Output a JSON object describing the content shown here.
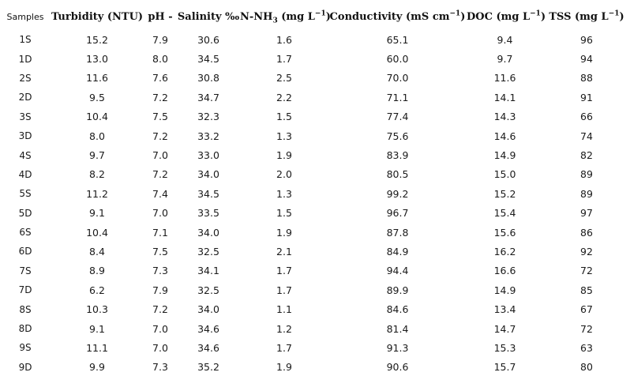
{
  "table": {
    "headers": {
      "samples": "Samples",
      "turbidity": "Turbidity (NTU)",
      "ph": "pH -",
      "salinity": "Salinity ‰",
      "nh3_prefix": "N-NH",
      "nh3_sub": "3",
      "nh3_unit": " (mg L",
      "nh3_sup": "−1",
      "nh3_close": ")",
      "cond_main": "Conductivity (mS cm",
      "cond_sup": "−1",
      "cond_close": ")",
      "doc_main": "DOC (mg L",
      "doc_sup": "−1",
      "doc_close": ")",
      "tss_main": "TSS (mg L",
      "tss_sup": "−1",
      "tss_close": ")"
    },
    "rows": [
      [
        "1S",
        "15.2",
        "7.9",
        "30.6",
        "1.6",
        "65.1",
        "9.4",
        "96"
      ],
      [
        "1D",
        "13.0",
        "8.0",
        "34.5",
        "1.7",
        "60.0",
        "9.7",
        "94"
      ],
      [
        "2S",
        "11.6",
        "7.6",
        "30.8",
        "2.5",
        "70.0",
        "11.6",
        "88"
      ],
      [
        "2D",
        "9.5",
        "7.2",
        "34.7",
        "2.2",
        "71.1",
        "14.1",
        "91"
      ],
      [
        "3S",
        "10.4",
        "7.5",
        "32.3",
        "1.5",
        "77.4",
        "14.3",
        "66"
      ],
      [
        "3D",
        "8.0",
        "7.2",
        "33.2",
        "1.3",
        "75.6",
        "14.6",
        "74"
      ],
      [
        "4S",
        "9.7",
        "7.0",
        "33.0",
        "1.9",
        "83.9",
        "14.9",
        "82"
      ],
      [
        "4D",
        "8.2",
        "7.2",
        "34.0",
        "2.0",
        "80.5",
        "15.0",
        "89"
      ],
      [
        "5S",
        "11.2",
        "7.4",
        "34.5",
        "1.3",
        "99.2",
        "15.2",
        "89"
      ],
      [
        "5D",
        "9.1",
        "7.0",
        "33.5",
        "1.5",
        "96.7",
        "15.4",
        "97"
      ],
      [
        "6S",
        "10.4",
        "7.1",
        "34.0",
        "1.9",
        "87.8",
        "15.6",
        "86"
      ],
      [
        "6D",
        "8.4",
        "7.5",
        "32.5",
        "2.1",
        "84.9",
        "16.2",
        "92"
      ],
      [
        "7S",
        "8.9",
        "7.3",
        "34.1",
        "1.7",
        "94.4",
        "16.6",
        "72"
      ],
      [
        "7D",
        "6.2",
        "7.9",
        "32.5",
        "1.7",
        "89.9",
        "14.9",
        "85"
      ],
      [
        "8S",
        "10.3",
        "7.2",
        "34.0",
        "1.1",
        "84.6",
        "13.4",
        "67"
      ],
      [
        "8D",
        "9.1",
        "7.0",
        "34.6",
        "1.2",
        "81.4",
        "14.7",
        "72"
      ],
      [
        "9S",
        "11.1",
        "7.0",
        "34.6",
        "1.7",
        "91.3",
        "15.3",
        "63"
      ],
      [
        "9D",
        "9.9",
        "7.3",
        "35.2",
        "1.9",
        "90.6",
        "15.7",
        "80"
      ]
    ]
  }
}
